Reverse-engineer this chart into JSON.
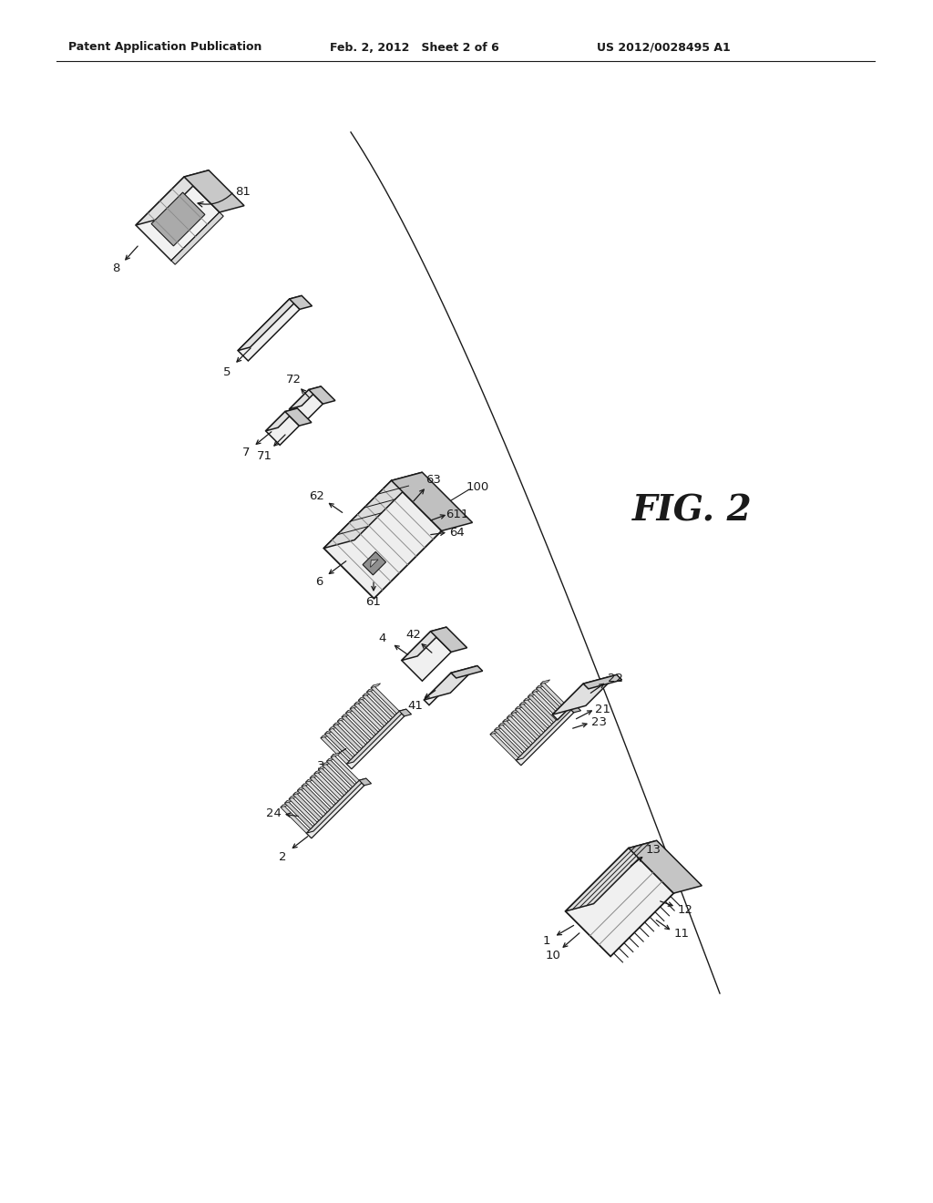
{
  "bg_color": "#ffffff",
  "header_left": "Patent Application Publication",
  "header_center": "Feb. 2, 2012   Sheet 2 of 6",
  "header_right": "US 2012/0028495 A1",
  "fig_label": "FIG. 2",
  "fig_width": 10.24,
  "fig_height": 13.2,
  "dpi": 100,
  "line_color": "#1a1a1a",
  "shade_light": "#f0f0f0",
  "shade_mid": "#d8d8d8",
  "shade_dark": "#b8b8b8",
  "shade_darker": "#909090"
}
